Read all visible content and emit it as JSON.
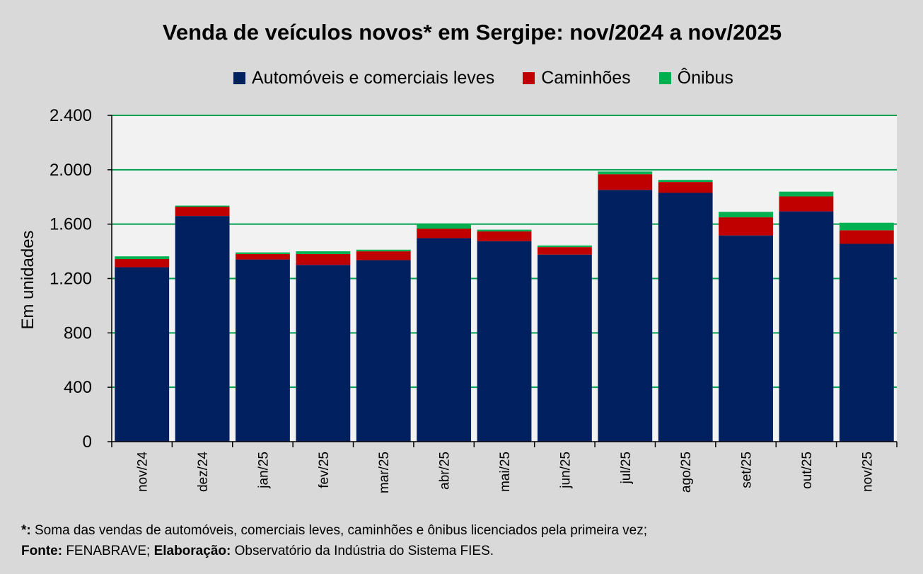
{
  "chart_data": {
    "type": "bar",
    "stacked": true,
    "title": "Venda de veículos novos* em Sergipe: nov/2024 a nov/2025",
    "ylabel": "Em unidades",
    "xlabel": "",
    "ylim": [
      0,
      2400
    ],
    "yticks": [
      0,
      400,
      800,
      1200,
      1600,
      2000,
      2400
    ],
    "ytick_labels": [
      "0",
      "400",
      "800",
      "1.200",
      "1.600",
      "2.000",
      "2.400"
    ],
    "grid": true,
    "legend_position": "top",
    "categories": [
      "nov/24",
      "dez/24",
      "jan/25",
      "fev/25",
      "mar/25",
      "abr/25",
      "mai/25",
      "jun/25",
      "jul/25",
      "ago/25",
      "set/25",
      "out/25",
      "nov/25"
    ],
    "series": [
      {
        "name": "Automóveis e comerciais leves",
        "color": "#002060",
        "values": [
          1283,
          1660,
          1340,
          1300,
          1335,
          1497,
          1475,
          1376,
          1852,
          1830,
          1517,
          1694,
          1455
        ]
      },
      {
        "name": "Caminhões",
        "color": "#c00000",
        "values": [
          60,
          68,
          40,
          80,
          65,
          70,
          72,
          55,
          115,
          80,
          133,
          110,
          100
        ]
      },
      {
        "name": "Ônibus",
        "color": "#00b050",
        "values": [
          20,
          8,
          12,
          20,
          12,
          35,
          12,
          12,
          20,
          15,
          40,
          35,
          55
        ]
      }
    ]
  },
  "footnote": {
    "star": "*:",
    "star_text": " Soma das vendas de automóveis, comerciais leves, caminhões e ônibus licenciados pela primeira vez;",
    "fonte_label": "Fonte:",
    "fonte_text": " FENABRAVE; ",
    "elaboracao_label": "Elaboração:",
    "elaboracao_text": " Observatório da Indústria do Sistema FIES."
  }
}
